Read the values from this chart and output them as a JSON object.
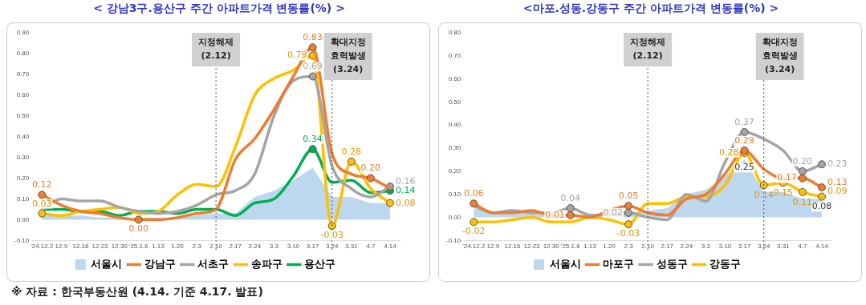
{
  "chart_data": [
    {
      "type": "line",
      "title": "< 강남3구.용산구 주간 아파트가격 변동률(%) >",
      "categories": [
        "'24.12.2",
        "12.9",
        "12.16",
        "12.23",
        "12.30",
        "'25.1.6",
        "1.13",
        "1.20",
        "2.3",
        "2.10",
        "2.17",
        "2.24",
        "3.3",
        "3.10",
        "3.17",
        "3.24",
        "3.31",
        "4.7",
        "4.14"
      ],
      "series": [
        {
          "name": "서울시",
          "type": "area",
          "color": "#bdd7ee",
          "values": [
            0.02,
            0.02,
            0.02,
            0.01,
            0.01,
            0.01,
            0.01,
            0.01,
            0.02,
            0.03,
            0.03,
            0.11,
            0.14,
            0.19,
            0.25,
            0.11,
            0.11,
            0.08,
            0.08
          ]
        },
        {
          "name": "강남구",
          "color": "#ed7d31",
          "values": [
            0.12,
            0.07,
            0.04,
            0.03,
            0.01,
            0.0,
            0.0,
            0.01,
            0.03,
            0.05,
            0.29,
            0.39,
            0.53,
            0.69,
            0.83,
            0.32,
            0.22,
            0.2,
            0.15
          ],
          "value_labels": [
            "0.12",
            null,
            null,
            null,
            null,
            "0.00",
            null,
            null,
            null,
            null,
            null,
            null,
            null,
            null,
            "0.83",
            null,
            null,
            "0.20",
            null
          ]
        },
        {
          "name": "서초구",
          "color": "#a5a5a5",
          "values": [
            0.05,
            0.1,
            0.09,
            0.09,
            0.06,
            0.04,
            0.03,
            0.04,
            0.07,
            0.12,
            0.14,
            0.22,
            0.5,
            0.67,
            0.69,
            0.26,
            0.15,
            0.11,
            0.16
          ],
          "value_labels": [
            null,
            null,
            null,
            null,
            null,
            null,
            null,
            null,
            null,
            null,
            null,
            null,
            null,
            null,
            "0.69",
            null,
            null,
            null,
            "0.16"
          ]
        },
        {
          "name": "송파구",
          "color": "#ffc000",
          "values": [
            0.03,
            0.02,
            0.04,
            0.05,
            0.06,
            0.03,
            0.04,
            0.12,
            0.17,
            0.16,
            0.35,
            0.6,
            0.68,
            0.72,
            0.79,
            -0.03,
            0.28,
            0.15,
            0.08
          ],
          "value_labels": [
            "0.03",
            null,
            null,
            null,
            null,
            null,
            null,
            null,
            null,
            null,
            null,
            null,
            null,
            null,
            "0.79",
            "-0.03",
            "0.28",
            null,
            "0.08"
          ]
        },
        {
          "name": "용산구",
          "color": "#00b050",
          "values": [
            0.05,
            0.05,
            0.04,
            0.04,
            0.02,
            0.04,
            0.04,
            0.03,
            0.05,
            0.05,
            0.02,
            0.08,
            0.1,
            0.21,
            0.34,
            0.18,
            0.19,
            0.13,
            0.14
          ],
          "value_labels": [
            null,
            null,
            null,
            null,
            null,
            null,
            null,
            null,
            null,
            null,
            null,
            null,
            null,
            null,
            "0.34",
            null,
            null,
            null,
            "0.14"
          ]
        }
      ],
      "ylim": [
        -0.1,
        0.9
      ],
      "yticks": [
        {
          "value": -0.1,
          "label": "-0.10"
        },
        {
          "value": 0,
          "label": "0.00"
        },
        {
          "value": 0.1,
          "label": "0.10"
        },
        {
          "value": 0.2,
          "label": "0.20"
        },
        {
          "value": 0.3,
          "label": "0.30"
        },
        {
          "value": 0.4,
          "label": "0.40"
        },
        {
          "value": 0.5,
          "label": "0.50"
        },
        {
          "value": 0.6,
          "label": "0.60"
        },
        {
          "value": 0.7,
          "label": "0.70"
        },
        {
          "value": 0.8,
          "label": "0.80"
        },
        {
          "value": 0.9,
          "label": "0.90"
        }
      ],
      "ref_lines": [
        {
          "axis": "x",
          "value": "2.10",
          "label": "지정해제\n(2.12)",
          "line_style": "dotted"
        },
        {
          "axis": "x",
          "value": "3.24",
          "label": "확대지정\n효력발생\n(3.24)",
          "line_style": "dotted"
        }
      ],
      "legend": "bottom",
      "grid": false,
      "annotations": [
        "※ 자료 : 한국부동산원 (4.14. 기준 4.17. 발표)"
      ]
    },
    {
      "type": "line",
      "title": "<마포.성동.강동구 주간 아파트가격 변동률(%) >",
      "categories": [
        "'24.12.2",
        "12.9",
        "12.16",
        "12.23",
        "12.30",
        "'25.1.6",
        "1.13",
        "1.20",
        "2.3",
        "2.10",
        "2.17",
        "2.24",
        "3.3",
        "3.10",
        "3.17",
        "3.24",
        "3.31",
        "4.7",
        "4.14"
      ],
      "series": [
        {
          "name": "서울시",
          "type": "area",
          "color": "#bdd7ee",
          "values": [
            0.04,
            0.02,
            0.02,
            0.02,
            0.01,
            0.01,
            0.01,
            0.01,
            0.02,
            0.03,
            0.04,
            0.1,
            0.12,
            0.18,
            0.25,
            0.11,
            0.11,
            0.08,
            0.08
          ],
          "value_labels": [
            null,
            null,
            null,
            null,
            null,
            null,
            null,
            null,
            null,
            null,
            null,
            null,
            null,
            null,
            "0.25",
            null,
            null,
            null,
            "0.08"
          ]
        },
        {
          "name": "마포구",
          "color": "#ed7d31",
          "values": [
            0.06,
            0.02,
            0.02,
            0.03,
            0.01,
            0.01,
            0.0,
            0.03,
            0.05,
            0.02,
            0.01,
            0.08,
            0.1,
            0.19,
            0.29,
            0.21,
            0.17,
            0.17,
            0.13
          ],
          "value_labels": [
            "0.06",
            null,
            null,
            null,
            null,
            "0.01",
            null,
            null,
            "0.05",
            null,
            null,
            null,
            null,
            null,
            "0.29",
            null,
            null,
            "0.17",
            "0.13"
          ]
        },
        {
          "name": "성동구",
          "color": "#a5a5a5",
          "values": [
            0.05,
            0.02,
            0.03,
            0.02,
            0.02,
            0.04,
            0.01,
            0.01,
            0.02,
            0.0,
            -0.01,
            0.1,
            0.07,
            0.24,
            0.37,
            0.34,
            0.29,
            0.2,
            0.23
          ],
          "value_labels": [
            null,
            null,
            null,
            null,
            null,
            "0.04",
            null,
            null,
            "0.02",
            null,
            null,
            null,
            null,
            null,
            "0.37",
            null,
            null,
            "0.20",
            "0.23"
          ]
        },
        {
          "name": "강동구",
          "color": "#ffc000",
          "values": [
            -0.02,
            -0.02,
            -0.01,
            0.0,
            -0.02,
            -0.02,
            0.0,
            -0.01,
            -0.03,
            0.06,
            0.06,
            0.09,
            0.09,
            0.14,
            0.28,
            0.14,
            0.15,
            0.11,
            0.09
          ],
          "value_labels": [
            "-0.02",
            null,
            null,
            null,
            null,
            null,
            null,
            null,
            "-0.03",
            null,
            null,
            null,
            null,
            null,
            "0.28",
            "0.14",
            "0.15",
            "0.11",
            "0.09"
          ]
        }
      ],
      "ylim": [
        -0.1,
        0.8
      ],
      "yticks": [
        {
          "value": -0.1,
          "label": "-0.10"
        },
        {
          "value": 0,
          "label": "0.00"
        },
        {
          "value": 0.1,
          "label": "0.10"
        },
        {
          "value": 0.2,
          "label": "0.20"
        },
        {
          "value": 0.3,
          "label": "0.30"
        },
        {
          "value": 0.4,
          "label": "0.40"
        },
        {
          "value": 0.5,
          "label": "0.50"
        },
        {
          "value": 0.6,
          "label": "0.60"
        },
        {
          "value": 0.7,
          "label": "0.70"
        },
        {
          "value": 0.8,
          "label": "0.80"
        }
      ],
      "ref_lines": [
        {
          "axis": "x",
          "value": "2.10",
          "label": "지정해제\n(2.12)",
          "line_style": "dotted"
        },
        {
          "axis": "x",
          "value": "3.24",
          "label": "확대지정\n효력발생\n(3.24)",
          "line_style": "dotted"
        }
      ],
      "legend": "bottom",
      "grid": false
    }
  ]
}
